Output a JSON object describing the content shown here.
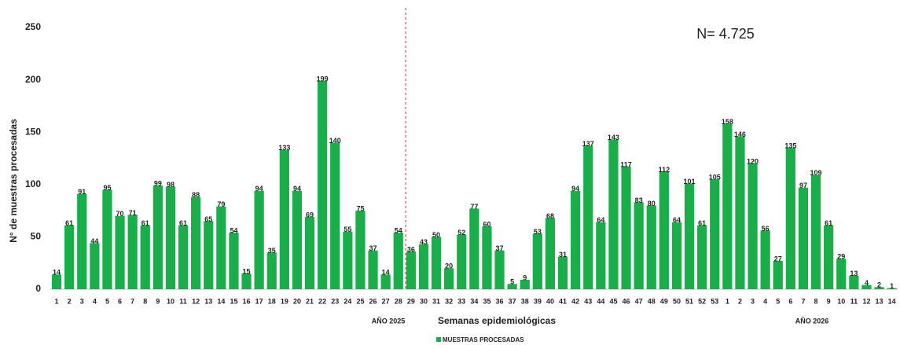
{
  "chart_data": {
    "type": "bar",
    "y_label": "N° de muestras procesadas",
    "x_label": "Semanas epidemiológicas",
    "annotation": "N= 4.725",
    "year_labels": [
      "AÑO 2025",
      "AÑO 2026"
    ],
    "categories": [
      "1",
      "2",
      "3",
      "4",
      "5",
      "6",
      "7",
      "8",
      "9",
      "10",
      "11",
      "12",
      "13",
      "14",
      "15",
      "16",
      "17",
      "18",
      "19",
      "20",
      "21",
      "22",
      "23",
      "24",
      "25",
      "26",
      "27",
      "28",
      "29",
      "30",
      "31",
      "32",
      "33",
      "34",
      "35",
      "36",
      "37",
      "38",
      "39",
      "40",
      "41",
      "42",
      "43",
      "44",
      "45",
      "46",
      "47",
      "48",
      "49",
      "50",
      "51",
      "52",
      "53",
      "1",
      "2",
      "3",
      "4",
      "5",
      "6",
      "7",
      "8",
      "9",
      "10",
      "11",
      "12",
      "13",
      "14"
    ],
    "series": [
      {
        "name": "MUESTRAS PROCESADAS",
        "color": "#1aae4b",
        "values": [
          14,
          61,
          91,
          44,
          95,
          70,
          71,
          61,
          99,
          98,
          61,
          88,
          65,
          79,
          54,
          15,
          94,
          35,
          133,
          94,
          69,
          199,
          140,
          55,
          75,
          37,
          14,
          54,
          36,
          43,
          50,
          20,
          52,
          77,
          60,
          37,
          5,
          9,
          53,
          68,
          31,
          94,
          137,
          64,
          143,
          117,
          83,
          80,
          112,
          64,
          101,
          61,
          105,
          158,
          146,
          120,
          56,
          27,
          135,
          97,
          109,
          61,
          29,
          13,
          4,
          2,
          1
        ]
      }
    ],
    "ylim": [
      0,
      250
    ],
    "yticks": [
      0,
      50,
      100,
      150,
      200,
      250
    ],
    "grid": false
  }
}
